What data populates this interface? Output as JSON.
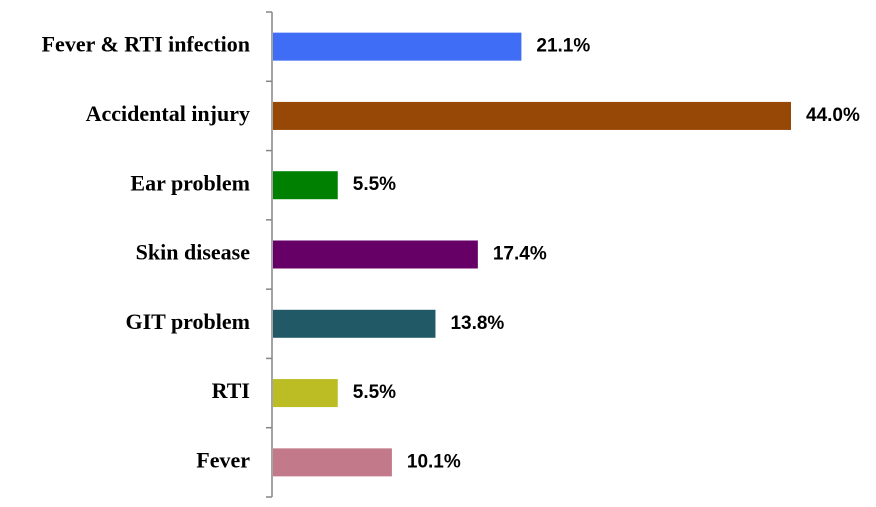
{
  "chart_data": {
    "type": "bar",
    "orientation": "horizontal",
    "categories": [
      "Fever & RTI infection",
      "Accidental injury",
      "Ear problem",
      "Skin disease",
      "GIT problem",
      "RTI",
      "Fever"
    ],
    "values": [
      21.1,
      44.0,
      5.5,
      17.4,
      13.8,
      5.5,
      10.1
    ],
    "value_labels": [
      "21.1%",
      "44.0%",
      "5.5%",
      "17.4%",
      "13.8%",
      "5.5%",
      "10.1%"
    ],
    "colors": [
      "#3f6df5",
      "#974806",
      "#008000",
      "#660066",
      "#215967",
      "#bcbc24",
      "#c27a8a"
    ],
    "title": "",
    "xlabel": "",
    "ylabel": "",
    "xlim": [
      0,
      44.0
    ],
    "grid": false,
    "legend": "none"
  }
}
